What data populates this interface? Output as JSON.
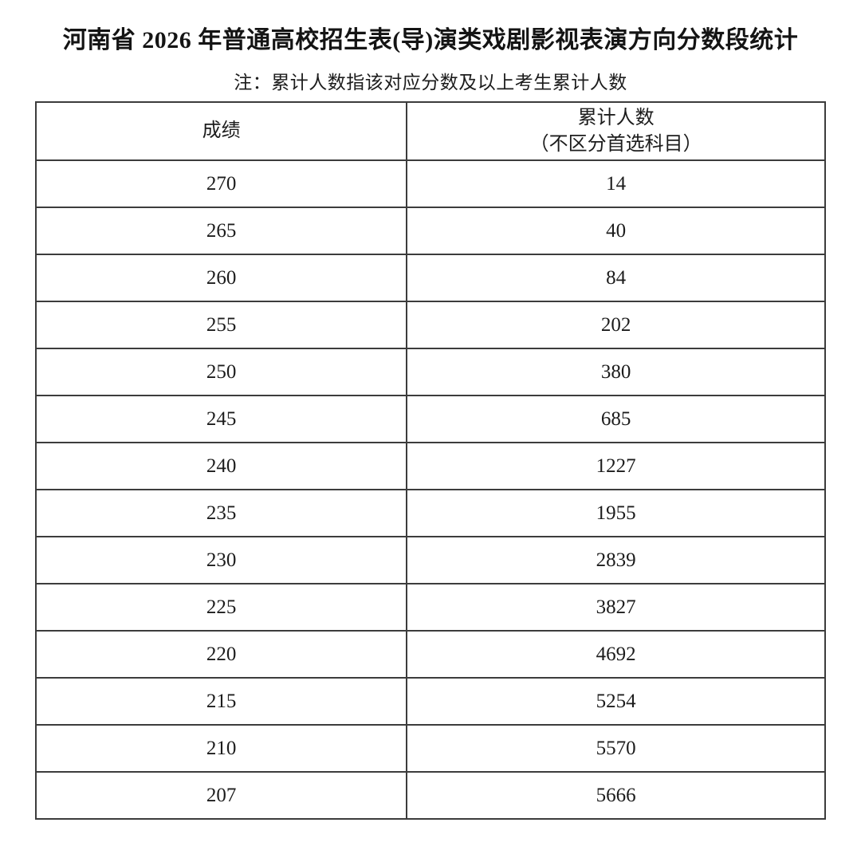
{
  "page": {
    "title": "河南省 2026 年普通高校招生表(导)演类戏剧影视表演方向分数段统计",
    "note": "注：累计人数指该对应分数及以上考生累计人数"
  },
  "table": {
    "headers": {
      "score": "成绩",
      "cumulative_line1": "累计人数",
      "cumulative_line2": "（不区分首选科目）"
    },
    "rows": [
      {
        "score": "270",
        "count": "14"
      },
      {
        "score": "265",
        "count": "40"
      },
      {
        "score": "260",
        "count": "84"
      },
      {
        "score": "255",
        "count": "202"
      },
      {
        "score": "250",
        "count": "380"
      },
      {
        "score": "245",
        "count": "685"
      },
      {
        "score": "240",
        "count": "1227"
      },
      {
        "score": "235",
        "count": "1955"
      },
      {
        "score": "230",
        "count": "2839"
      },
      {
        "score": "225",
        "count": "3827"
      },
      {
        "score": "220",
        "count": "4692"
      },
      {
        "score": "215",
        "count": "5254"
      },
      {
        "score": "210",
        "count": "5570"
      },
      {
        "score": "207",
        "count": "5666"
      }
    ]
  },
  "colors": {
    "background": "#ffffff",
    "text": "#1c1c1c",
    "border": "#3c3c3c"
  }
}
